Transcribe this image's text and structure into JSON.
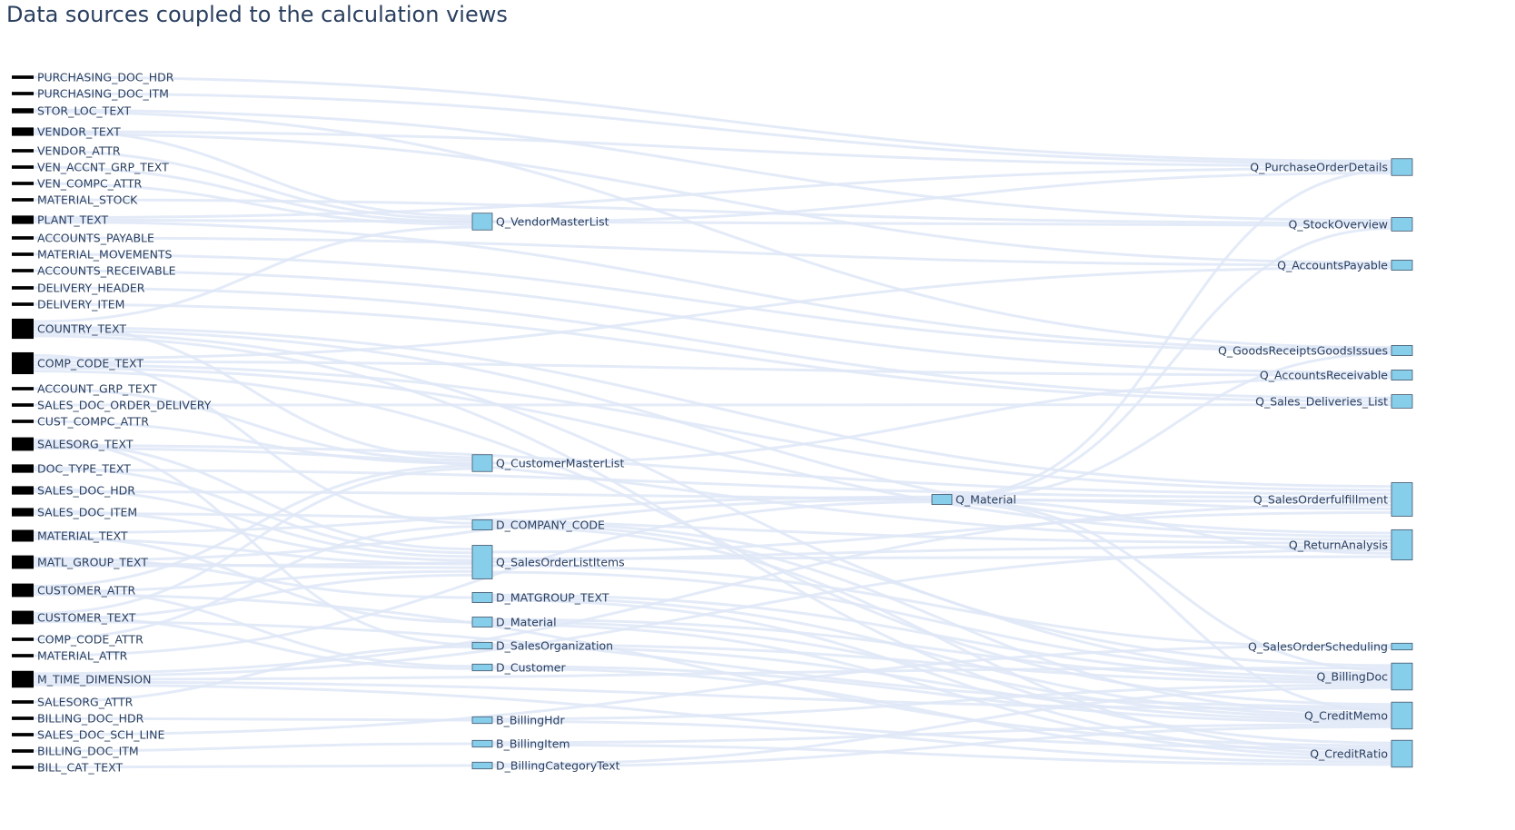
{
  "title": "Data sources coupled to the calculation views",
  "colors": {
    "source_node": "#000000",
    "view_node": "#87ceeb",
    "view_node_border": "#44546a",
    "link": "#dfe8f7",
    "text": "#2a3f5f"
  },
  "chart_data": {
    "type": "sankey",
    "title": "Data sources coupled to the calculation views",
    "columns": [
      {
        "name": "sources",
        "nodes": [
          "PURCHASING_DOC_HDR",
          "PURCHASING_DOC_ITM",
          "STOR_LOC_TEXT",
          "VENDOR_TEXT",
          "VENDOR_ATTR",
          "VEN_ACCNT_GRP_TEXT",
          "VEN_COMPC_ATTR",
          "MATERIAL_STOCK",
          "PLANT_TEXT",
          "ACCOUNTS_PAYABLE",
          "MATERIAL_MOVEMENTS",
          "ACCOUNTS_RECEIVABLE",
          "DELIVERY_HEADER",
          "DELIVERY_ITEM",
          "COUNTRY_TEXT",
          "COMP_CODE_TEXT",
          "ACCOUNT_GRP_TEXT",
          "SALES_DOC_ORDER_DELIVERY",
          "CUST_COMPC_ATTR",
          "SALESORG_TEXT",
          "DOC_TYPE_TEXT",
          "SALES_DOC_HDR",
          "SALES_DOC_ITEM",
          "MATERIAL_TEXT",
          "MATL_GROUP_TEXT",
          "CUSTOMER_ATTR",
          "CUSTOMER_TEXT",
          "COMP_CODE_ATTR",
          "MATERIAL_ATTR",
          "M_TIME_DIMENSION",
          "SALESORG_ATTR",
          "BILLING_DOC_HDR",
          "SALES_DOC_SCH_LINE",
          "BILLING_DOC_ITM",
          "BILL_CAT_TEXT"
        ]
      },
      {
        "name": "intermediate views",
        "nodes": [
          "Q_VendorMasterList",
          "Q_CustomerMasterList",
          "D_COMPANY_CODE",
          "Q_SalesOrderListItems",
          "D_MATGROUP_TEXT",
          "D_Material",
          "D_SalesOrganization",
          "D_Customer",
          "B_BillingHdr",
          "B_BillingItem",
          "D_BillingCategoryText"
        ]
      },
      {
        "name": "material view",
        "nodes": [
          "Q_Material"
        ]
      },
      {
        "name": "target views",
        "nodes": [
          "Q_PurchaseOrderDetails",
          "Q_StockOverview",
          "Q_AccountsPayable",
          "Q_GoodsReceiptsGoodsIssues",
          "Q_AccountsReceivable",
          "Q_Sales_Deliveries_List",
          "Q_SalesOrderfulfillment",
          "Q_ReturnAnalysis",
          "Q_SalesOrderScheduling",
          "Q_BillingDoc",
          "Q_CreditMemo",
          "Q_CreditRatio"
        ]
      }
    ],
    "node_values": {
      "PURCHASING_DOC_HDR": 1,
      "PURCHASING_DOC_ITM": 1,
      "STOR_LOC_TEXT": 1.5,
      "VENDOR_TEXT": 2.5,
      "VENDOR_ATTR": 1,
      "VEN_ACCNT_GRP_TEXT": 1,
      "VEN_COMPC_ATTR": 1,
      "MATERIAL_STOCK": 1,
      "PLANT_TEXT": 2.5,
      "ACCOUNTS_PAYABLE": 1,
      "MATERIAL_MOVEMENTS": 1,
      "ACCOUNTS_RECEIVABLE": 1,
      "DELIVERY_HEADER": 1,
      "DELIVERY_ITEM": 1,
      "COUNTRY_TEXT": 6,
      "COMP_CODE_TEXT": 6.5,
      "ACCOUNT_GRP_TEXT": 1,
      "SALES_DOC_ORDER_DELIVERY": 1,
      "CUST_COMPC_ATTR": 1,
      "SALESORG_TEXT": 4,
      "DOC_TYPE_TEXT": 2.5,
      "SALES_DOC_HDR": 2.5,
      "SALES_DOC_ITEM": 2.5,
      "MATERIAL_TEXT": 3.5,
      "MATL_GROUP_TEXT": 4,
      "CUSTOMER_ATTR": 4,
      "CUSTOMER_TEXT": 4,
      "COMP_CODE_ATTR": 1,
      "MATERIAL_ATTR": 1,
      "M_TIME_DIMENSION": 5,
      "SALESORG_ATTR": 1,
      "BILLING_DOC_HDR": 1,
      "SALES_DOC_SCH_LINE": 1,
      "BILLING_DOC_ITM": 1,
      "BILL_CAT_TEXT": 1,
      "Q_VendorMasterList": 5,
      "Q_CustomerMasterList": 5,
      "D_COMPANY_CODE": 3,
      "Q_SalesOrderListItems": 10,
      "D_MATGROUP_TEXT": 3,
      "D_Material": 3,
      "D_SalesOrganization": 2,
      "D_Customer": 2,
      "B_BillingHdr": 2,
      "B_BillingItem": 2,
      "D_BillingCategoryText": 2,
      "Q_Material": 3,
      "Q_PurchaseOrderDetails": 5,
      "Q_StockOverview": 4,
      "Q_AccountsPayable": 3,
      "Q_GoodsReceiptsGoodsIssues": 3,
      "Q_AccountsReceivable": 3,
      "Q_Sales_Deliveries_List": 4,
      "Q_SalesOrderfulfillment": 10,
      "Q_ReturnAnalysis": 9,
      "Q_SalesOrderScheduling": 2,
      "Q_BillingDoc": 8,
      "Q_CreditMemo": 8,
      "Q_CreditRatio": 8
    },
    "links": [
      [
        "PURCHASING_DOC_HDR",
        "Q_PurchaseOrderDetails"
      ],
      [
        "PURCHASING_DOC_ITM",
        "Q_PurchaseOrderDetails"
      ],
      [
        "STOR_LOC_TEXT",
        "Q_StockOverview"
      ],
      [
        "STOR_LOC_TEXT",
        "Q_GoodsReceiptsGoodsIssues"
      ],
      [
        "VENDOR_TEXT",
        "Q_VendorMasterList"
      ],
      [
        "VENDOR_TEXT",
        "Q_PurchaseOrderDetails"
      ],
      [
        "VENDOR_TEXT",
        "Q_AccountsPayable"
      ],
      [
        "VENDOR_ATTR",
        "Q_VendorMasterList"
      ],
      [
        "VEN_ACCNT_GRP_TEXT",
        "Q_VendorMasterList"
      ],
      [
        "VEN_COMPC_ATTR",
        "Q_VendorMasterList"
      ],
      [
        "MATERIAL_STOCK",
        "Q_StockOverview"
      ],
      [
        "PLANT_TEXT",
        "Q_PurchaseOrderDetails"
      ],
      [
        "PLANT_TEXT",
        "Q_StockOverview"
      ],
      [
        "PLANT_TEXT",
        "Q_GoodsReceiptsGoodsIssues"
      ],
      [
        "ACCOUNTS_PAYABLE",
        "Q_AccountsPayable"
      ],
      [
        "MATERIAL_MOVEMENTS",
        "Q_GoodsReceiptsGoodsIssues"
      ],
      [
        "ACCOUNTS_RECEIVABLE",
        "Q_AccountsReceivable"
      ],
      [
        "DELIVERY_HEADER",
        "Q_Sales_Deliveries_List"
      ],
      [
        "DELIVERY_ITEM",
        "Q_Sales_Deliveries_List"
      ],
      [
        "COUNTRY_TEXT",
        "Q_VendorMasterList"
      ],
      [
        "COUNTRY_TEXT",
        "Q_CustomerMasterList"
      ],
      [
        "COUNTRY_TEXT",
        "Q_SalesOrderfulfillment"
      ],
      [
        "COUNTRY_TEXT",
        "Q_ReturnAnalysis"
      ],
      [
        "COUNTRY_TEXT",
        "Q_BillingDoc"
      ],
      [
        "COUNTRY_TEXT",
        "Q_CreditRatio"
      ],
      [
        "COMP_CODE_TEXT",
        "D_COMPANY_CODE"
      ],
      [
        "COMP_CODE_TEXT",
        "Q_AccountsPayable"
      ],
      [
        "COMP_CODE_TEXT",
        "Q_AccountsReceivable"
      ],
      [
        "COMP_CODE_TEXT",
        "Q_SalesOrderfulfillment"
      ],
      [
        "COMP_CODE_TEXT",
        "Q_ReturnAnalysis"
      ],
      [
        "COMP_CODE_TEXT",
        "Q_CreditMemo"
      ],
      [
        "ACCOUNT_GRP_TEXT",
        "Q_CustomerMasterList"
      ],
      [
        "SALES_DOC_ORDER_DELIVERY",
        "Q_Sales_Deliveries_List"
      ],
      [
        "CUST_COMPC_ATTR",
        "Q_CustomerMasterList"
      ],
      [
        "SALESORG_TEXT",
        "D_SalesOrganization"
      ],
      [
        "SALESORG_TEXT",
        "Q_SalesOrderListItems"
      ],
      [
        "SALESORG_TEXT",
        "Q_SalesOrderfulfillment"
      ],
      [
        "SALESORG_TEXT",
        "Q_ReturnAnalysis"
      ],
      [
        "DOC_TYPE_TEXT",
        "Q_SalesOrderListItems"
      ],
      [
        "DOC_TYPE_TEXT",
        "Q_SalesOrderfulfillment"
      ],
      [
        "SALES_DOC_HDR",
        "Q_SalesOrderListItems"
      ],
      [
        "SALES_DOC_HDR",
        "Q_SalesOrderfulfillment"
      ],
      [
        "SALES_DOC_ITEM",
        "Q_SalesOrderListItems"
      ],
      [
        "SALES_DOC_ITEM",
        "Q_ReturnAnalysis"
      ],
      [
        "MATERIAL_TEXT",
        "Q_Material"
      ],
      [
        "MATERIAL_TEXT",
        "D_Material"
      ],
      [
        "MATERIAL_TEXT",
        "Q_SalesOrderListItems"
      ],
      [
        "MATL_GROUP_TEXT",
        "D_MATGROUP_TEXT"
      ],
      [
        "MATL_GROUP_TEXT",
        "Q_Material"
      ],
      [
        "MATL_GROUP_TEXT",
        "Q_SalesOrderListItems"
      ],
      [
        "MATL_GROUP_TEXT",
        "Q_ReturnAnalysis"
      ],
      [
        "CUSTOMER_ATTR",
        "Q_CustomerMasterList"
      ],
      [
        "CUSTOMER_ATTR",
        "D_Customer"
      ],
      [
        "CUSTOMER_ATTR",
        "Q_SalesOrderListItems"
      ],
      [
        "CUSTOMER_ATTR",
        "Q_CreditRatio"
      ],
      [
        "CUSTOMER_TEXT",
        "Q_CustomerMasterList"
      ],
      [
        "CUSTOMER_TEXT",
        "D_Customer"
      ],
      [
        "CUSTOMER_TEXT",
        "Q_SalesOrderListItems"
      ],
      [
        "CUSTOMER_TEXT",
        "Q_CreditMemo"
      ],
      [
        "COMP_CODE_ATTR",
        "D_COMPANY_CODE"
      ],
      [
        "MATERIAL_ATTR",
        "Q_Material"
      ],
      [
        "M_TIME_DIMENSION",
        "Q_SalesOrderfulfillment"
      ],
      [
        "M_TIME_DIMENSION",
        "Q_ReturnAnalysis"
      ],
      [
        "M_TIME_DIMENSION",
        "Q_BillingDoc"
      ],
      [
        "M_TIME_DIMENSION",
        "Q_CreditMemo"
      ],
      [
        "M_TIME_DIMENSION",
        "Q_CreditRatio"
      ],
      [
        "SALESORG_ATTR",
        "D_SalesOrganization"
      ],
      [
        "BILLING_DOC_HDR",
        "B_BillingHdr"
      ],
      [
        "SALES_DOC_SCH_LINE",
        "Q_SalesOrderScheduling"
      ],
      [
        "BILLING_DOC_ITM",
        "B_BillingItem"
      ],
      [
        "BILL_CAT_TEXT",
        "D_BillingCategoryText"
      ],
      [
        "Q_Material",
        "Q_PurchaseOrderDetails"
      ],
      [
        "Q_Material",
        "Q_StockOverview"
      ],
      [
        "Q_Material",
        "Q_GoodsReceiptsGoodsIssues"
      ],
      [
        "Q_Material",
        "Q_SalesOrderfulfillment"
      ],
      [
        "Q_Material",
        "Q_ReturnAnalysis"
      ],
      [
        "Q_Material",
        "Q_BillingDoc"
      ],
      [
        "Q_Material",
        "Q_CreditMemo"
      ],
      [
        "Q_SalesOrderListItems",
        "Q_SalesOrderfulfillment"
      ],
      [
        "Q_SalesOrderListItems",
        "Q_ReturnAnalysis"
      ],
      [
        "Q_SalesOrderListItems",
        "Q_SalesOrderScheduling"
      ],
      [
        "Q_SalesOrderListItems",
        "Q_BillingDoc"
      ],
      [
        "D_COMPANY_CODE",
        "Q_BillingDoc"
      ],
      [
        "D_COMPANY_CODE",
        "Q_CreditMemo"
      ],
      [
        "D_COMPANY_CODE",
        "Q_CreditRatio"
      ],
      [
        "D_MATGROUP_TEXT",
        "Q_BillingDoc"
      ],
      [
        "D_MATGROUP_TEXT",
        "Q_CreditMemo"
      ],
      [
        "D_MATGROUP_TEXT",
        "Q_CreditRatio"
      ],
      [
        "D_Material",
        "Q_BillingDoc"
      ],
      [
        "D_Material",
        "Q_CreditMemo"
      ],
      [
        "D_Material",
        "Q_CreditRatio"
      ],
      [
        "D_SalesOrganization",
        "Q_BillingDoc"
      ],
      [
        "D_SalesOrganization",
        "Q_CreditMemo"
      ],
      [
        "D_Customer",
        "Q_CreditMemo"
      ],
      [
        "D_Customer",
        "Q_CreditRatio"
      ],
      [
        "B_BillingHdr",
        "Q_BillingDoc"
      ],
      [
        "B_BillingHdr",
        "Q_CreditRatio"
      ],
      [
        "B_BillingItem",
        "Q_CreditMemo"
      ],
      [
        "B_BillingItem",
        "Q_CreditRatio"
      ],
      [
        "D_BillingCategoryText",
        "Q_BillingDoc"
      ],
      [
        "D_BillingCategoryText",
        "Q_CreditMemo"
      ],
      [
        "Q_VendorMasterList",
        "Q_PurchaseOrderDetails"
      ],
      [
        "Q_CustomerMasterList",
        "Q_AccountsReceivable"
      ]
    ]
  }
}
